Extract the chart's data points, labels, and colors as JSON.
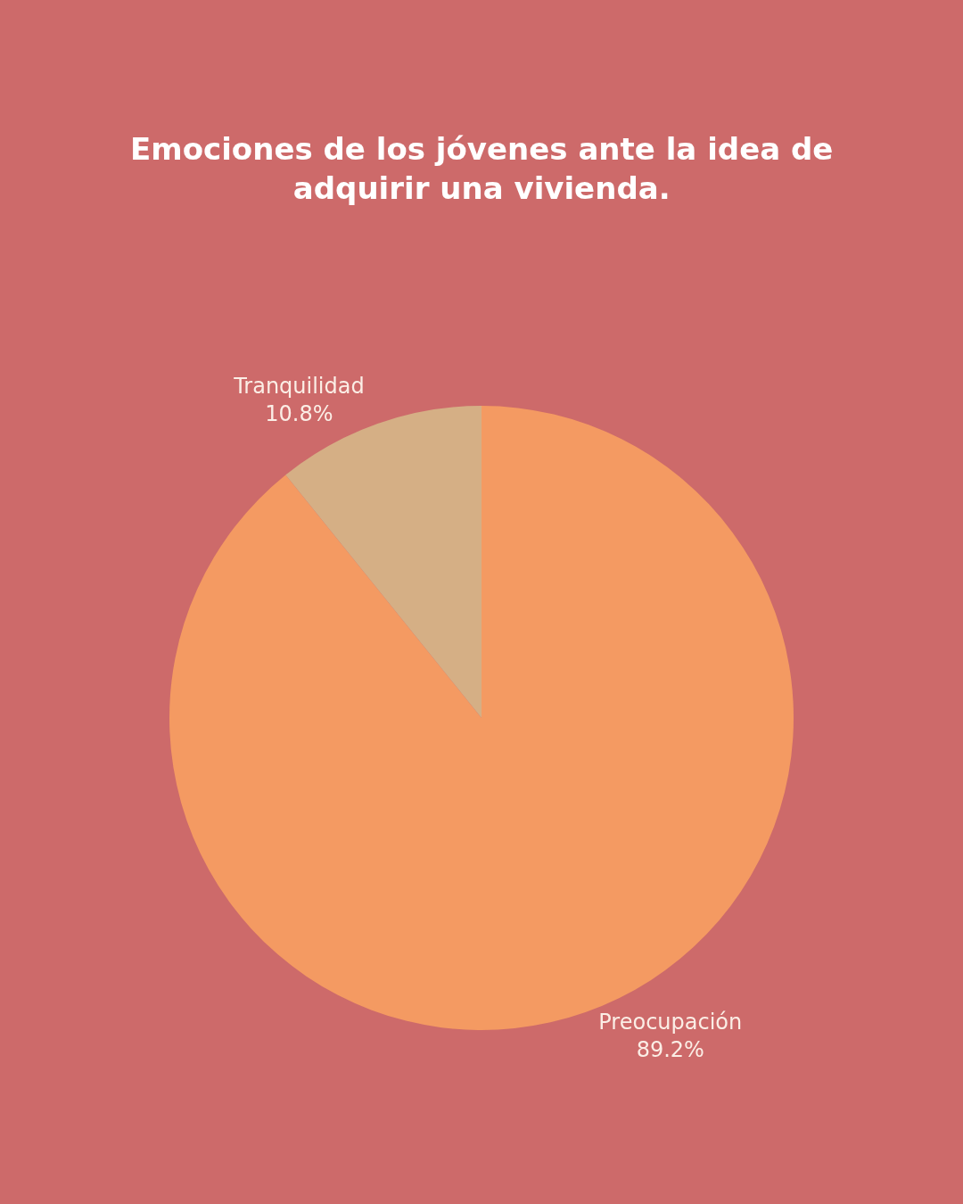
{
  "chart_data": {
    "type": "pie",
    "title": "Emociones de los jóvenes ante la idea de adquirir una vivienda.",
    "categories": [
      "Preocupación",
      "Tranquilidad"
    ],
    "values": [
      89.2,
      10.8
    ],
    "value_labels": [
      "89.2%",
      "10.8%"
    ],
    "colors": [
      "#f49a62",
      "#d5af85"
    ],
    "legend": false
  }
}
